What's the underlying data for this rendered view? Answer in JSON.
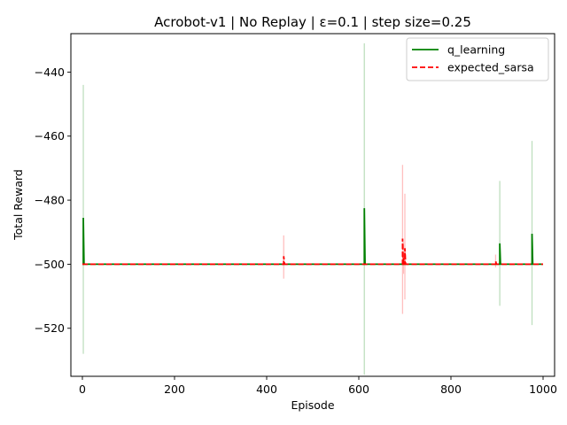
{
  "chart_data": {
    "type": "line",
    "title": "Acrobot-v1 | No Replay | ε=0.1 | step size=0.25",
    "xlabel": "Episode",
    "ylabel": "Total Reward",
    "xlim": [
      -25,
      1025
    ],
    "ylim": [
      -535,
      -428
    ],
    "xticks": [
      0,
      200,
      400,
      600,
      800,
      1000
    ],
    "yticks": [
      -520,
      -500,
      -480,
      -460,
      -440
    ],
    "grid": false,
    "legend_position": "top-right",
    "series": [
      {
        "name": "q_learning",
        "color": "#008000",
        "style": "solid",
        "baseline": -500,
        "spikes": [
          {
            "x": 2,
            "y": -485.5,
            "err_low": -528,
            "err_high": -444
          },
          {
            "x": 612,
            "y": -482.5,
            "err_low": -534.5,
            "err_high": -431
          },
          {
            "x": 906,
            "y": -493.5,
            "err_low": -513,
            "err_high": -474
          },
          {
            "x": 976,
            "y": -490.5,
            "err_low": -519,
            "err_high": -461.5
          }
        ]
      },
      {
        "name": "expected_sarsa",
        "color": "#ff0000",
        "style": "dashed",
        "baseline": -500,
        "spikes": [
          {
            "x": 437,
            "y": -497.5,
            "err_low": -504.5,
            "err_high": -491
          },
          {
            "x": 695,
            "y": -492,
            "err_low": -515.5,
            "err_high": -469
          },
          {
            "x": 700,
            "y": -495,
            "err_low": -511,
            "err_high": -478
          },
          {
            "x": 697,
            "y": -498,
            "err_low": -503,
            "err_high": -493
          },
          {
            "x": 897,
            "y": -499,
            "err_low": -501,
            "err_high": -497
          }
        ]
      }
    ]
  }
}
